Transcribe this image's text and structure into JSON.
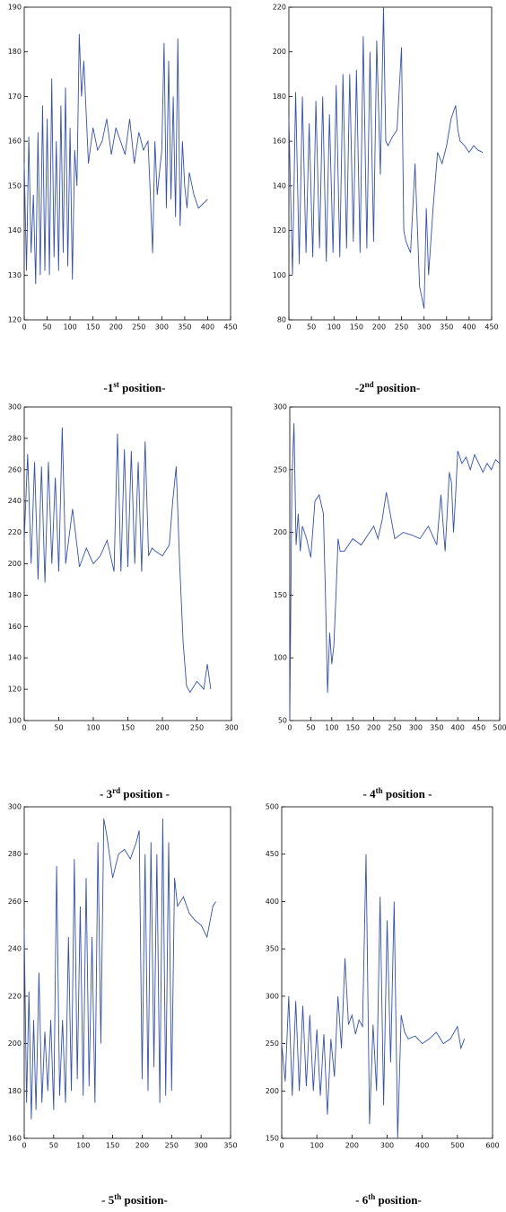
{
  "chart_data": [
    {
      "type": "line",
      "caption": [
        "-1",
        "st",
        " position-"
      ],
      "x": [
        0,
        5,
        10,
        15,
        20,
        25,
        30,
        35,
        40,
        45,
        50,
        55,
        60,
        65,
        70,
        75,
        80,
        85,
        90,
        95,
        100,
        105,
        110,
        115,
        120,
        125,
        130,
        140,
        150,
        160,
        170,
        180,
        190,
        200,
        210,
        220,
        230,
        240,
        250,
        260,
        270,
        275,
        280,
        285,
        290,
        300,
        305,
        310,
        315,
        320,
        325,
        330,
        335,
        340,
        345,
        350,
        355,
        360,
        370,
        380,
        390,
        400
      ],
      "series": [
        {
          "color": "#3652a6",
          "values": [
            155,
            131,
            161,
            135,
            148,
            128,
            162,
            130,
            168,
            131,
            165,
            130,
            174,
            134,
            160,
            131,
            168,
            135,
            172,
            132,
            163,
            129,
            158,
            150,
            184,
            170,
            178,
            155,
            163,
            158,
            160,
            165,
            157,
            163,
            160,
            157,
            165,
            155,
            162,
            158,
            160,
            148,
            135,
            160,
            148,
            158,
            182,
            145,
            178,
            147,
            170,
            143,
            183,
            141,
            160,
            150,
            145,
            153,
            148,
            145,
            146,
            147
          ]
        }
      ],
      "xlim": [
        0,
        450
      ],
      "ylim": [
        120,
        190
      ],
      "xticks": [
        0,
        50,
        100,
        150,
        200,
        250,
        300,
        350,
        400,
        450
      ],
      "yticks": [
        120,
        130,
        140,
        150,
        160,
        170,
        180,
        190
      ]
    },
    {
      "type": "line",
      "caption": [
        "-2",
        "nd",
        " position-"
      ],
      "x": [
        0,
        8,
        15,
        23,
        30,
        38,
        45,
        53,
        60,
        68,
        75,
        83,
        90,
        98,
        105,
        113,
        120,
        128,
        135,
        143,
        150,
        158,
        165,
        173,
        180,
        188,
        195,
        203,
        210,
        215,
        220,
        230,
        240,
        250,
        255,
        260,
        270,
        280,
        290,
        300,
        305,
        310,
        320,
        330,
        340,
        350,
        360,
        370,
        375,
        380,
        390,
        400,
        410,
        420,
        430
      ],
      "series": [
        {
          "color": "#3652a6",
          "values": [
            170,
            100,
            182,
            105,
            180,
            110,
            168,
            108,
            178,
            112,
            180,
            106,
            172,
            110,
            185,
            108,
            190,
            112,
            190,
            115,
            192,
            110,
            207,
            112,
            200,
            115,
            205,
            145,
            220,
            160,
            158,
            162,
            165,
            202,
            120,
            115,
            110,
            150,
            95,
            85,
            130,
            100,
            130,
            155,
            150,
            158,
            170,
            176,
            165,
            160,
            158,
            155,
            158,
            156,
            155
          ]
        }
      ],
      "xlim": [
        0,
        450
      ],
      "ylim": [
        80,
        220
      ],
      "xticks": [
        0,
        50,
        100,
        150,
        200,
        250,
        300,
        350,
        400,
        450
      ],
      "yticks": [
        80,
        100,
        120,
        140,
        160,
        180,
        200,
        220
      ]
    },
    {
      "type": "line",
      "caption": [
        "- 3",
        "rd",
        " position -"
      ],
      "x": [
        0,
        5,
        10,
        15,
        20,
        25,
        30,
        35,
        40,
        45,
        50,
        55,
        60,
        70,
        80,
        90,
        100,
        110,
        120,
        130,
        135,
        140,
        145,
        150,
        155,
        160,
        165,
        170,
        175,
        180,
        185,
        190,
        200,
        210,
        215,
        220,
        225,
        230,
        235,
        240,
        250,
        260,
        265,
        270
      ],
      "series": [
        {
          "color": "#3652a6",
          "values": [
            215,
            270,
            200,
            265,
            190,
            262,
            188,
            265,
            200,
            255,
            195,
            287,
            200,
            235,
            198,
            210,
            200,
            205,
            215,
            195,
            283,
            195,
            273,
            198,
            272,
            200,
            265,
            195,
            278,
            205,
            210,
            208,
            205,
            212,
            240,
            262,
            200,
            150,
            122,
            118,
            125,
            120,
            136,
            120
          ]
        }
      ],
      "xlim": [
        0,
        300
      ],
      "ylim": [
        100,
        300
      ],
      "xticks": [
        0,
        50,
        100,
        150,
        200,
        250,
        300
      ],
      "yticks": [
        100,
        120,
        140,
        160,
        180,
        200,
        220,
        240,
        260,
        280,
        300
      ]
    },
    {
      "type": "line",
      "caption": [
        "- 4",
        "th",
        " position -"
      ],
      "x": [
        0,
        5,
        10,
        15,
        20,
        25,
        30,
        40,
        50,
        60,
        70,
        80,
        85,
        90,
        95,
        100,
        105,
        110,
        115,
        120,
        130,
        150,
        170,
        190,
        200,
        210,
        220,
        230,
        250,
        270,
        290,
        310,
        330,
        350,
        360,
        370,
        380,
        385,
        390,
        395,
        400,
        410,
        420,
        430,
        440,
        450,
        460,
        470,
        480,
        490,
        500
      ],
      "series": [
        {
          "color": "#3652a6",
          "values": [
            50,
            240,
            287,
            190,
            215,
            185,
            205,
            195,
            180,
            225,
            230,
            215,
            150,
            72,
            120,
            95,
            110,
            150,
            195,
            185,
            185,
            195,
            190,
            200,
            205,
            195,
            210,
            232,
            195,
            200,
            198,
            195,
            205,
            190,
            230,
            185,
            248,
            240,
            200,
            230,
            265,
            255,
            260,
            250,
            262,
            255,
            248,
            255,
            250,
            258,
            255
          ]
        }
      ],
      "xlim": [
        0,
        500
      ],
      "ylim": [
        50,
        300
      ],
      "xticks": [
        0,
        50,
        100,
        150,
        200,
        250,
        300,
        350,
        400,
        450,
        500
      ],
      "yticks": [
        50,
        100,
        150,
        200,
        250,
        300
      ]
    },
    {
      "type": "line",
      "caption": [
        "- 5",
        "th",
        " position-"
      ],
      "x": [
        0,
        4,
        8,
        12,
        16,
        20,
        25,
        30,
        35,
        40,
        45,
        50,
        55,
        60,
        65,
        70,
        75,
        80,
        85,
        90,
        95,
        100,
        105,
        110,
        115,
        120,
        125,
        130,
        135,
        140,
        150,
        160,
        170,
        180,
        190,
        195,
        200,
        205,
        210,
        215,
        220,
        225,
        230,
        235,
        240,
        245,
        250,
        255,
        260,
        270,
        280,
        290,
        300,
        310,
        320,
        325
      ],
      "series": [
        {
          "color": "#3652a6",
          "values": [
            248,
            175,
            222,
            168,
            210,
            172,
            230,
            175,
            205,
            180,
            210,
            172,
            275,
            178,
            210,
            175,
            245,
            180,
            278,
            185,
            258,
            178,
            270,
            182,
            245,
            175,
            285,
            200,
            295,
            288,
            270,
            280,
            282,
            278,
            285,
            290,
            185,
            280,
            180,
            285,
            190,
            280,
            175,
            295,
            178,
            285,
            180,
            270,
            258,
            262,
            255,
            252,
            250,
            245,
            258,
            260
          ]
        }
      ],
      "xlim": [
        0,
        350
      ],
      "ylim": [
        160,
        300
      ],
      "xticks": [
        0,
        50,
        100,
        150,
        200,
        250,
        300,
        350
      ],
      "yticks": [
        160,
        180,
        200,
        220,
        240,
        260,
        280,
        300
      ]
    },
    {
      "type": "line",
      "caption": [
        "- 6",
        "th",
        " position-"
      ],
      "x": [
        0,
        10,
        20,
        30,
        40,
        50,
        60,
        70,
        80,
        90,
        100,
        110,
        120,
        130,
        140,
        150,
        160,
        170,
        180,
        190,
        200,
        210,
        220,
        230,
        240,
        250,
        260,
        270,
        280,
        290,
        300,
        310,
        320,
        330,
        340,
        350,
        360,
        380,
        400,
        420,
        440,
        460,
        480,
        500,
        510,
        520
      ],
      "series": [
        {
          "color": "#3652a6",
          "values": [
            250,
            210,
            300,
            195,
            295,
            200,
            290,
            205,
            280,
            200,
            265,
            195,
            260,
            175,
            255,
            215,
            300,
            245,
            340,
            270,
            280,
            260,
            275,
            268,
            450,
            165,
            270,
            200,
            405,
            185,
            380,
            230,
            400,
            150,
            280,
            262,
            255,
            258,
            250,
            255,
            262,
            250,
            255,
            268,
            245,
            255
          ]
        }
      ],
      "xlim": [
        0,
        600
      ],
      "ylim": [
        150,
        500
      ],
      "xticks": [
        0,
        100,
        200,
        300,
        400,
        500,
        600
      ],
      "yticks": [
        150,
        200,
        250,
        300,
        350,
        400,
        450,
        500
      ]
    }
  ]
}
